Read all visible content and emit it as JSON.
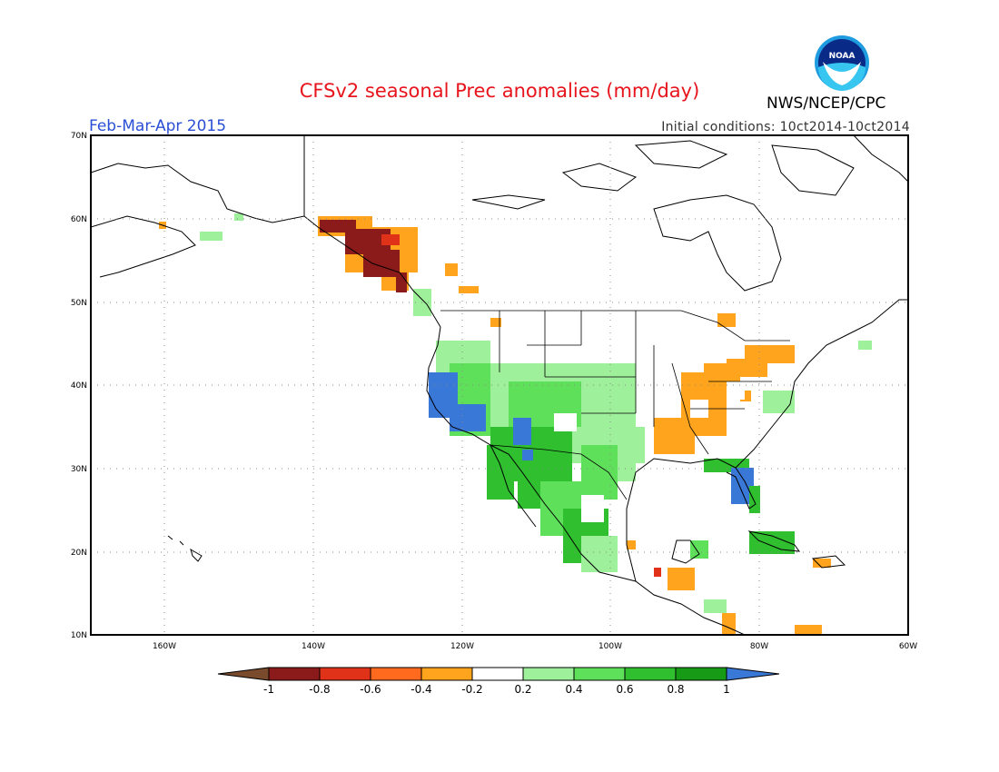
{
  "title": "CFSv2 seasonal Prec anomalies (mm/day)",
  "period": "Feb-Mar-Apr 2015",
  "initial_conditions": "Initial conditions: 10ct2014-10ct2014",
  "agency": "NWS/NCEP/CPC",
  "logo_text": "NOAA",
  "lat_labels": [
    "70N",
    "60N",
    "50N",
    "40N",
    "30N",
    "20N",
    "10N"
  ],
  "lon_labels": [
    "160W",
    "140W",
    "120W",
    "100W",
    "80W",
    "60W"
  ],
  "colorbar": {
    "labels": [
      "-1",
      "-0.8",
      "-0.6",
      "-0.4",
      "-0.2",
      "0.2",
      "0.4",
      "0.6",
      "0.8",
      "1"
    ],
    "colors": [
      "#8b1a1a",
      "#e03219",
      "#ff6a1f",
      "#ffa41c",
      "#ffffff",
      "#9ff09a",
      "#5fe05a",
      "#2fbf2f",
      "#179b17",
      "#3a78d8"
    ],
    "low_arrow_color": "#7a4a2c",
    "high_arrow_color": "#3a78d8"
  }
}
